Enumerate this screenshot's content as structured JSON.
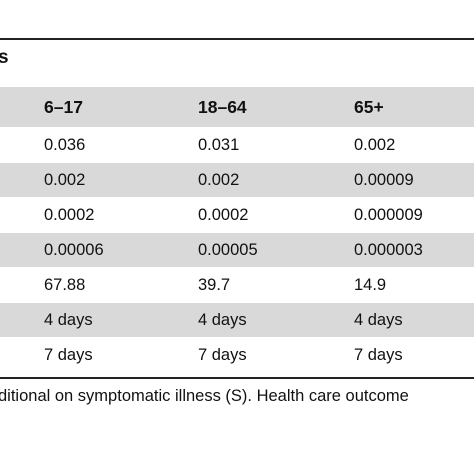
{
  "table": {
    "section_label": "s",
    "columns": [
      "6–17",
      "18–64",
      "65+"
    ],
    "rows": [
      {
        "shaded": false,
        "cells": [
          "0.036",
          "0.031",
          "0.002"
        ]
      },
      {
        "shaded": true,
        "cells": [
          "0.002",
          "0.002",
          "0.00009"
        ]
      },
      {
        "shaded": false,
        "cells": [
          "0.0002",
          "0.0002",
          "0.000009"
        ]
      },
      {
        "shaded": true,
        "cells": [
          "0.00006",
          "0.00005",
          "0.000003"
        ]
      },
      {
        "shaded": false,
        "cells": [
          "67.88",
          "39.7",
          "14.9"
        ]
      },
      {
        "shaded": true,
        "cells": [
          "4 days",
          "4 days",
          "4 days"
        ]
      },
      {
        "shaded": false,
        "cells": [
          "7 days",
          "7 days",
          "7 days"
        ]
      }
    ]
  },
  "footnote": "ditional on symptomatic illness (S). Health care outcome"
}
